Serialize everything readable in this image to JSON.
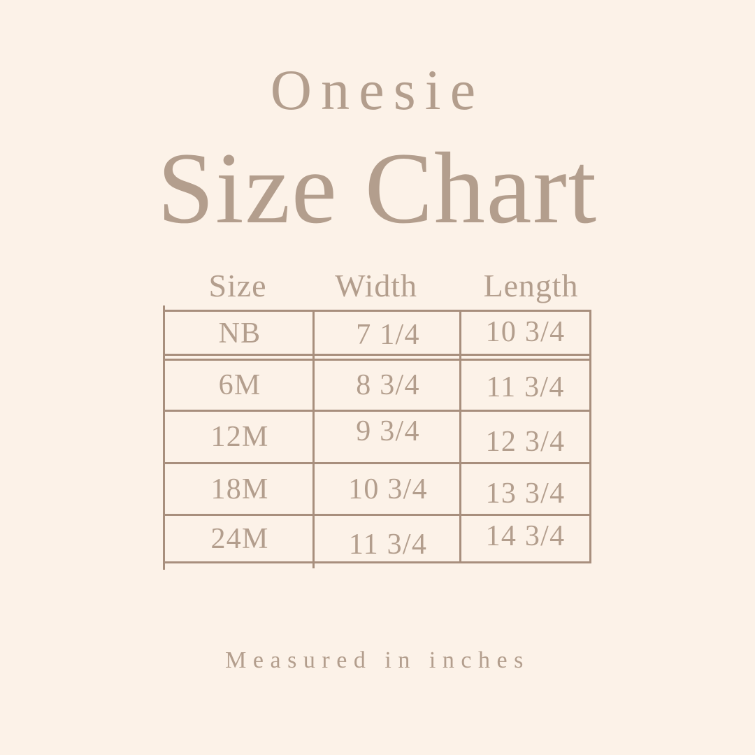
{
  "page": {
    "title_small": "Onesie",
    "title_large": "Size Chart",
    "footnote": "Measured in inches"
  },
  "table": {
    "headers": [
      "Size",
      "Width",
      "Length"
    ],
    "rows": [
      {
        "size": "NB",
        "width": "7 1/4",
        "length": "10 3/4"
      },
      {
        "size": "6M",
        "width": "8 3/4",
        "length": "11 3/4"
      },
      {
        "size": "12M",
        "width": "9 3/4",
        "length": "12 3/4"
      },
      {
        "size": "18M",
        "width": "10 3/4",
        "length": "13 3/4"
      },
      {
        "size": "24M",
        "width": "11 3/4",
        "length": "14 3/4"
      }
    ]
  },
  "colors": {
    "background": "#fcf2e8",
    "ink": "#b39e8d",
    "border": "#a88f7d"
  },
  "chart_data": {
    "type": "table",
    "title": "Onesie Size Chart",
    "columns": [
      "Size",
      "Width",
      "Length"
    ],
    "rows": [
      [
        "NB",
        "7 1/4",
        "10 3/4"
      ],
      [
        "6M",
        "8 3/4",
        "11 3/4"
      ],
      [
        "12M",
        "9 3/4",
        "12 3/4"
      ],
      [
        "18M",
        "10 3/4",
        "13 3/4"
      ],
      [
        "24M",
        "11 3/4",
        "14 3/4"
      ]
    ],
    "units": "inches",
    "note": "Measured in inches"
  }
}
